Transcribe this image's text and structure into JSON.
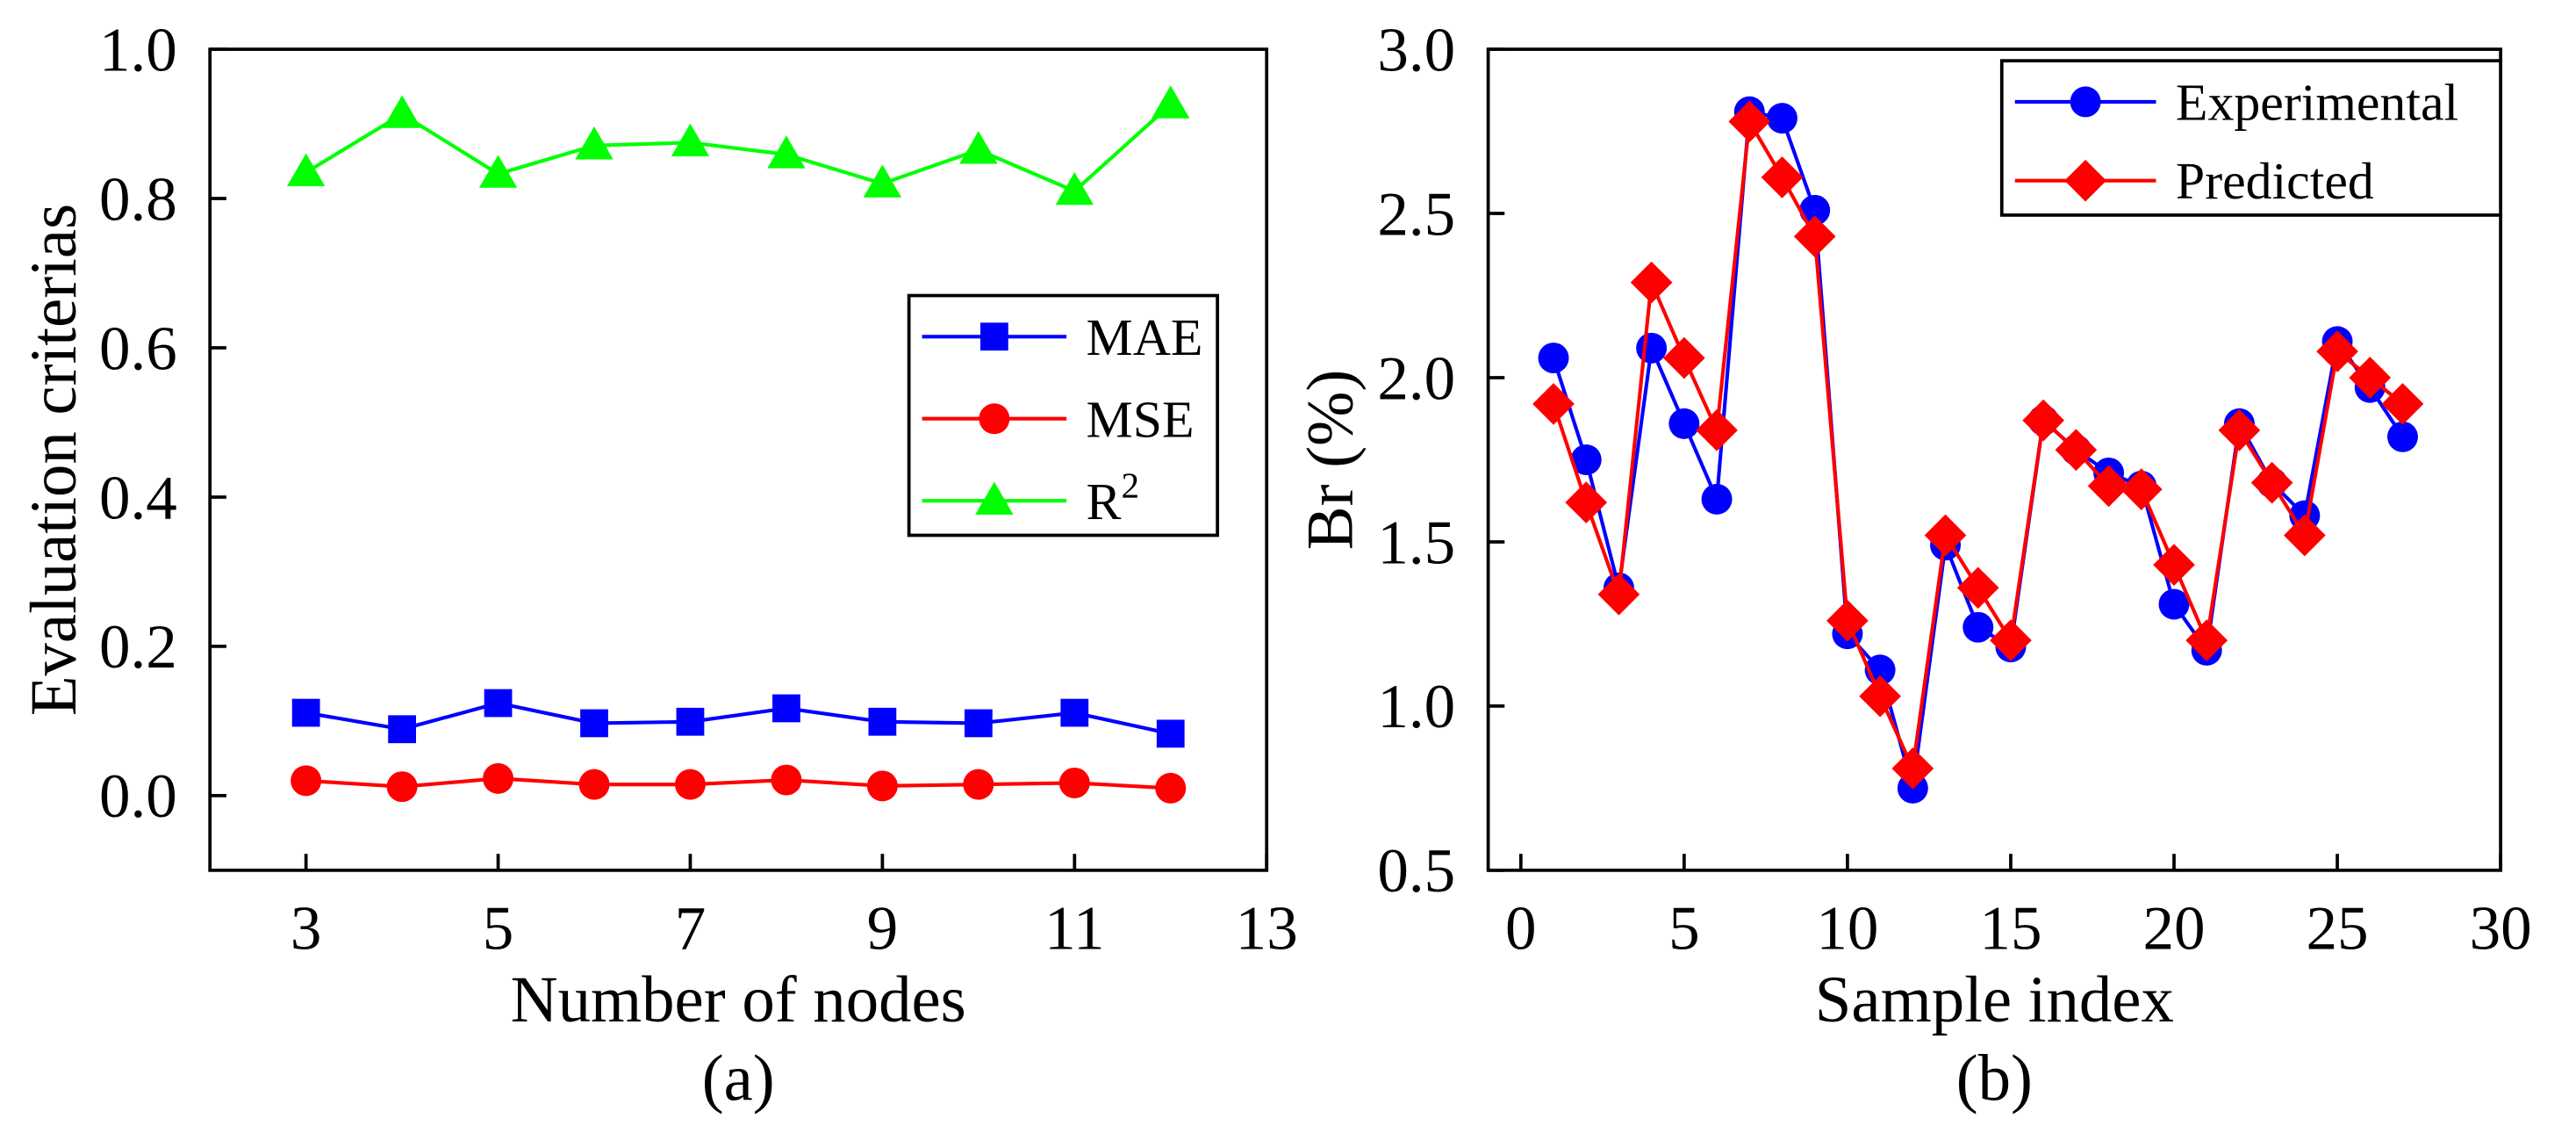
{
  "chart_data": [
    {
      "type": "line",
      "panel_label": "(a)",
      "xlabel": "Number of nodes",
      "ylabel": "Evaluation criterias",
      "xlim": [
        2,
        13
      ],
      "ylim": [
        -0.1,
        1.0
      ],
      "x_ticks": [
        3,
        5,
        7,
        9,
        11,
        13
      ],
      "y_ticks": [
        0.0,
        0.2,
        0.4,
        0.6,
        0.8,
        1.0
      ],
      "x_tick_labels": [
        "3",
        "5",
        "7",
        "9",
        "11",
        "13"
      ],
      "y_tick_labels": [
        "0.0",
        "0.2",
        "0.4",
        "0.6",
        "0.8",
        "1.0"
      ],
      "grid": false,
      "legend_position": "center-right",
      "x": [
        3,
        4,
        5,
        6,
        7,
        8,
        9,
        10,
        11,
        12
      ],
      "series": [
        {
          "name": "MAE",
          "label_main": "MAE",
          "label_sup": "",
          "color": "#0000ff",
          "marker": "square",
          "values": [
            0.111,
            0.089,
            0.124,
            0.097,
            0.099,
            0.117,
            0.099,
            0.097,
            0.111,
            0.083
          ]
        },
        {
          "name": "MSE",
          "label_main": "MSE",
          "label_sup": "",
          "color": "#ff0000",
          "marker": "circle",
          "values": [
            0.02,
            0.012,
            0.023,
            0.015,
            0.015,
            0.021,
            0.013,
            0.015,
            0.017,
            0.01
          ]
        },
        {
          "name": "R2",
          "label_main": "R",
          "label_sup": "2",
          "color": "#00ff00",
          "marker": "triangle",
          "values": [
            0.835,
            0.913,
            0.833,
            0.871,
            0.875,
            0.859,
            0.82,
            0.865,
            0.81,
            0.926
          ]
        }
      ]
    },
    {
      "type": "line",
      "panel_label": "(b)",
      "xlabel": "Sample index",
      "ylabel": "Br (%)",
      "xlim": [
        -1,
        30
      ],
      "ylim": [
        0.5,
        3.0
      ],
      "x_ticks": [
        0,
        5,
        10,
        15,
        20,
        25,
        30
      ],
      "y_ticks": [
        0.5,
        1.0,
        1.5,
        2.0,
        2.5,
        3.0
      ],
      "x_tick_labels": [
        "0",
        "5",
        "10",
        "15",
        "20",
        "25",
        "30"
      ],
      "y_tick_labels": [
        "0.5",
        "1.0",
        "1.5",
        "2.0",
        "2.5",
        "3.0"
      ],
      "grid": false,
      "legend_position": "top-right",
      "x": [
        1,
        2,
        3,
        4,
        5,
        6,
        7,
        8,
        9,
        10,
        11,
        12,
        13,
        14,
        15,
        16,
        17,
        18,
        19,
        20,
        21,
        22,
        23,
        24,
        25,
        26,
        27
      ],
      "series": [
        {
          "name": "Experimental",
          "label_main": "Experimental",
          "label_sup": "",
          "color": "#0000ff",
          "marker": "circle",
          "values": [
            2.06,
            1.75,
            1.36,
            2.09,
            1.86,
            1.63,
            2.81,
            2.79,
            2.51,
            1.22,
            1.11,
            0.75,
            1.49,
            1.24,
            1.18,
            1.87,
            1.78,
            1.71,
            1.67,
            1.31,
            1.17,
            1.86,
            1.68,
            1.58,
            2.11,
            1.97,
            1.82
          ]
        },
        {
          "name": "Predicted",
          "label_main": "Predicted",
          "label_sup": "",
          "color": "#ff0000",
          "marker": "diamond",
          "values": [
            1.92,
            1.62,
            1.34,
            2.29,
            2.06,
            1.84,
            2.78,
            2.61,
            2.43,
            1.26,
            1.03,
            0.81,
            1.52,
            1.36,
            1.2,
            1.87,
            1.78,
            1.67,
            1.66,
            1.43,
            1.2,
            1.84,
            1.68,
            1.52,
            2.08,
            2.0,
            1.92
          ]
        }
      ]
    }
  ]
}
